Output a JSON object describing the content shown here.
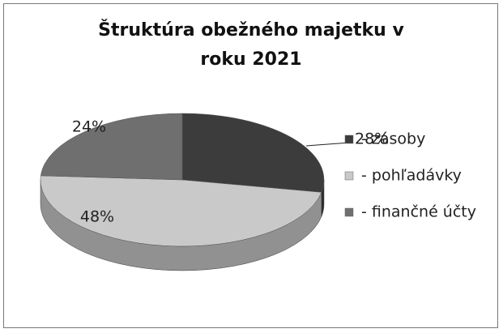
{
  "chart_data": {
    "type": "pie",
    "title": "Štruktúra obežného majetku v roku 2021",
    "categories": [
      "- zásoby",
      "- pohľadávky",
      "- finančné účty"
    ],
    "values": [
      28,
      48,
      24
    ],
    "value_labels": [
      "28%",
      "48%",
      "24%"
    ],
    "colors": [
      "#3c3c3c",
      "#c9c9c9",
      "#6f6f6f"
    ]
  }
}
